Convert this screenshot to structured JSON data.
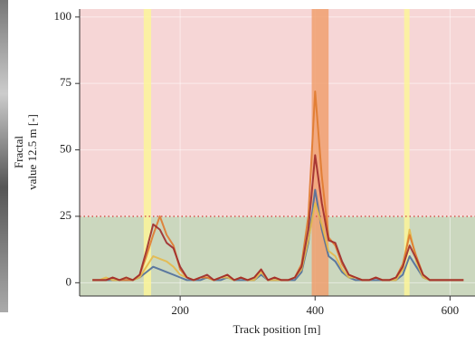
{
  "chart_data": {
    "type": "line",
    "xlabel": "Track position [m]",
    "ylabel": [
      "Fractal",
      "value 12.5 m [-]"
    ],
    "xlim": [
      51,
      637
    ],
    "ylim": [
      -5,
      103
    ],
    "xticks": [
      200,
      400,
      600
    ],
    "yticks": [
      0,
      25,
      50,
      75,
      100
    ],
    "grid": true,
    "threshold": 25,
    "threshold_color": "#d9534f",
    "above_color": "#f6d6d6",
    "below_color": "#cbd7be",
    "highlights": [
      {
        "start": 146,
        "end": 157,
        "color": "#fbf59a"
      },
      {
        "start": 395,
        "end": 420,
        "color": "#f0a070"
      },
      {
        "start": 532,
        "end": 540,
        "color": "#fbf59a"
      }
    ],
    "x": [
      70,
      80,
      90,
      100,
      110,
      120,
      130,
      140,
      150,
      160,
      170,
      180,
      190,
      200,
      210,
      220,
      230,
      240,
      250,
      260,
      270,
      280,
      290,
      300,
      310,
      320,
      330,
      340,
      350,
      360,
      370,
      380,
      390,
      400,
      410,
      420,
      430,
      440,
      450,
      460,
      470,
      480,
      490,
      500,
      510,
      520,
      530,
      540,
      550,
      560,
      570,
      580,
      590,
      600,
      610,
      620
    ],
    "series": [
      {
        "color": "#4f6e9b",
        "values": [
          1,
          1,
          1,
          1,
          1,
          1,
          1,
          2,
          4,
          6,
          5,
          4,
          3,
          2,
          1,
          1,
          1,
          2,
          1,
          1,
          2,
          1,
          1,
          1,
          1,
          3,
          1,
          1,
          1,
          1,
          1,
          4,
          15,
          35,
          20,
          10,
          8,
          4,
          2,
          1,
          1,
          1,
          1,
          1,
          1,
          1,
          3,
          10,
          6,
          2,
          1,
          1,
          1,
          1,
          1,
          1
        ]
      },
      {
        "color": "#e6b94a",
        "values": [
          1,
          1,
          2,
          1,
          1,
          2,
          1,
          2,
          6,
          10,
          9,
          8,
          6,
          3,
          2,
          1,
          2,
          2,
          1,
          2,
          2,
          1,
          2,
          1,
          1,
          4,
          1,
          1,
          1,
          1,
          2,
          5,
          16,
          30,
          22,
          12,
          10,
          5,
          2,
          2,
          1,
          1,
          2,
          1,
          1,
          1,
          5,
          20,
          8,
          2,
          1,
          1,
          1,
          1,
          1,
          1
        ]
      },
      {
        "color": "#e07a2f",
        "values": [
          1,
          1,
          1,
          2,
          1,
          1,
          1,
          3,
          10,
          18,
          25,
          18,
          14,
          5,
          2,
          1,
          2,
          2,
          1,
          2,
          3,
          1,
          2,
          1,
          2,
          5,
          1,
          2,
          1,
          1,
          2,
          7,
          25,
          72,
          40,
          17,
          14,
          7,
          3,
          2,
          1,
          1,
          2,
          1,
          1,
          2,
          7,
          18,
          10,
          3,
          1,
          1,
          1,
          1,
          1,
          1
        ]
      },
      {
        "color": "#9e2a2b",
        "values": [
          1,
          1,
          1,
          2,
          1,
          2,
          1,
          3,
          12,
          22,
          20,
          15,
          13,
          6,
          2,
          1,
          2,
          3,
          1,
          2,
          3,
          1,
          2,
          1,
          2,
          5,
          1,
          2,
          1,
          1,
          2,
          6,
          20,
          48,
          30,
          16,
          15,
          8,
          3,
          2,
          1,
          1,
          2,
          1,
          1,
          2,
          6,
          14,
          9,
          3,
          1,
          1,
          1,
          1,
          1,
          1
        ]
      }
    ]
  }
}
